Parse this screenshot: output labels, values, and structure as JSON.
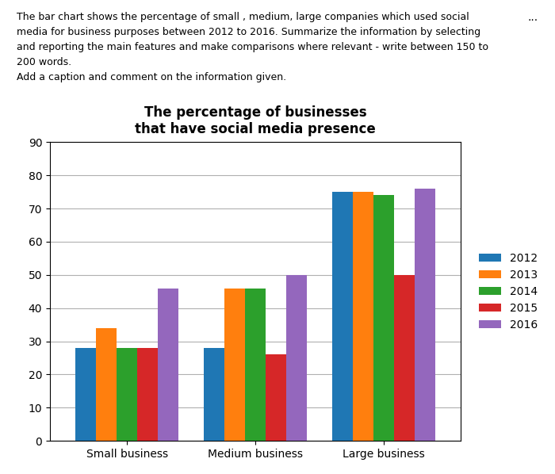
{
  "chart_data": {
    "type": "bar",
    "title": "The percentage of businesses\nthat have social media presence",
    "categories": [
      "Small business",
      "Medium business",
      "Large business"
    ],
    "series": [
      {
        "name": "2012",
        "values": [
          28,
          28,
          75
        ]
      },
      {
        "name": "2013",
        "values": [
          34,
          46,
          75
        ]
      },
      {
        "name": "2014",
        "values": [
          28,
          46,
          74
        ]
      },
      {
        "name": "2015",
        "values": [
          28,
          26,
          50
        ]
      },
      {
        "name": "2016",
        "values": [
          46,
          50,
          76
        ]
      }
    ],
    "ylim": [
      0,
      90
    ],
    "yticks": [
      0,
      10,
      20,
      30,
      40,
      50,
      60,
      70,
      80,
      90
    ],
    "grid": true,
    "legend": "center left",
    "annotations": [
      "The bar chart shows the percentage of small , medium, large companies which used social",
      "media for business purposes between 2012 to 2016. Summarize the information by selecting",
      "and reporting the main features and make comparisons where relevant - write between 150 to",
      "200 words.",
      "Add a caption and comment on the information given.",
      "..."
    ]
  }
}
